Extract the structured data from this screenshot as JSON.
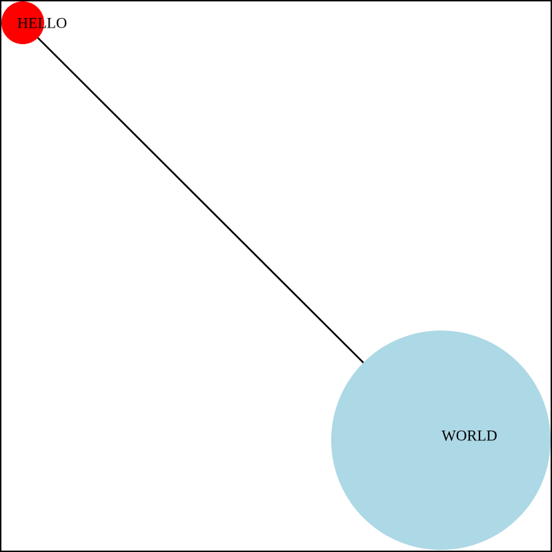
{
  "diagram": {
    "nodes": [
      {
        "id": "hello",
        "label": "HELLO",
        "color": "#ff0000"
      },
      {
        "id": "world",
        "label": "WORLD",
        "color": "#add8e6"
      }
    ],
    "edges": [
      {
        "from": "hello",
        "to": "world",
        "color": "#000000"
      }
    ],
    "border_color": "#000000",
    "background": "#ffffff"
  }
}
